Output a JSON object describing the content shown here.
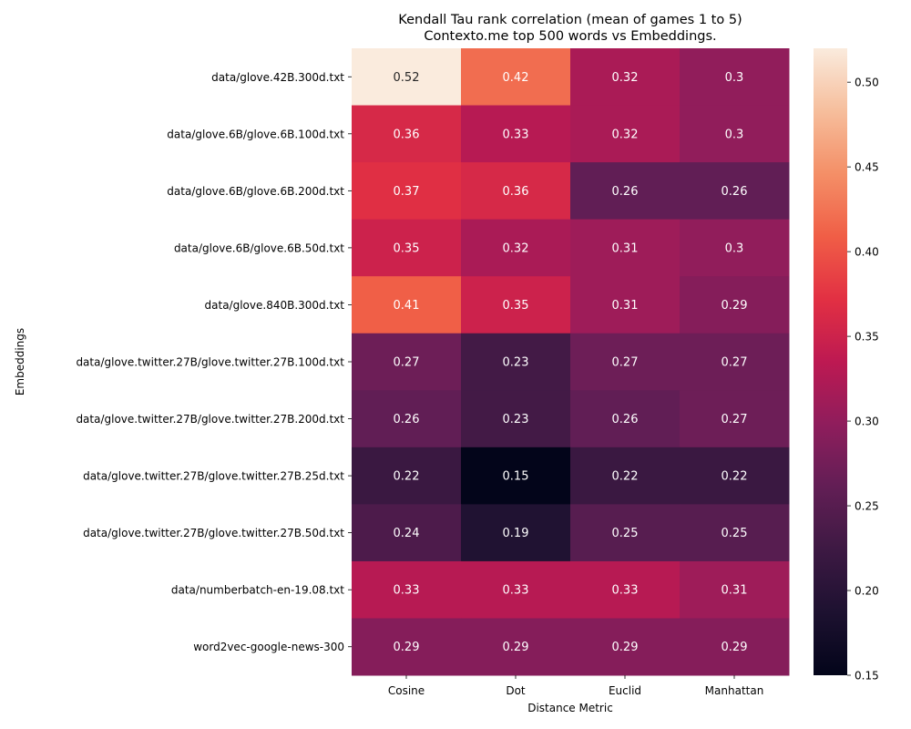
{
  "chart_data": {
    "type": "heatmap",
    "title": "Kendall Tau rank correlation (mean of games 1 to 5)",
    "subtitle": "Contexto.me top 500 words vs Embeddings.",
    "xlabel": "Distance Metric",
    "ylabel": "Embeddings",
    "columns": [
      "Cosine",
      "Dot",
      "Euclid",
      "Manhattan"
    ],
    "rows": [
      "data/glove.42B.300d.txt",
      "data/glove.6B/glove.6B.100d.txt",
      "data/glove.6B/glove.6B.200d.txt",
      "data/glove.6B/glove.6B.50d.txt",
      "data/glove.840B.300d.txt",
      "data/glove.twitter.27B/glove.twitter.27B.100d.txt",
      "data/glove.twitter.27B/glove.twitter.27B.200d.txt",
      "data/glove.twitter.27B/glove.twitter.27B.25d.txt",
      "data/glove.twitter.27B/glove.twitter.27B.50d.txt",
      "data/numberbatch-en-19.08.txt",
      "word2vec-google-news-300"
    ],
    "values": [
      [
        0.52,
        0.42,
        0.32,
        0.3
      ],
      [
        0.36,
        0.33,
        0.32,
        0.3
      ],
      [
        0.37,
        0.36,
        0.26,
        0.26
      ],
      [
        0.35,
        0.32,
        0.31,
        0.3
      ],
      [
        0.41,
        0.35,
        0.31,
        0.29
      ],
      [
        0.27,
        0.23,
        0.27,
        0.27
      ],
      [
        0.26,
        0.23,
        0.26,
        0.27
      ],
      [
        0.22,
        0.15,
        0.22,
        0.22
      ],
      [
        0.24,
        0.19,
        0.25,
        0.25
      ],
      [
        0.33,
        0.33,
        0.33,
        0.31
      ],
      [
        0.29,
        0.29,
        0.29,
        0.29
      ]
    ],
    "vmin": 0.15,
    "vmax": 0.52,
    "colormap": "rocket",
    "colorbar_ticks": [
      "0.15",
      "0.20",
      "0.25",
      "0.30",
      "0.35",
      "0.40",
      "0.45",
      "0.50"
    ],
    "annotations": true
  }
}
